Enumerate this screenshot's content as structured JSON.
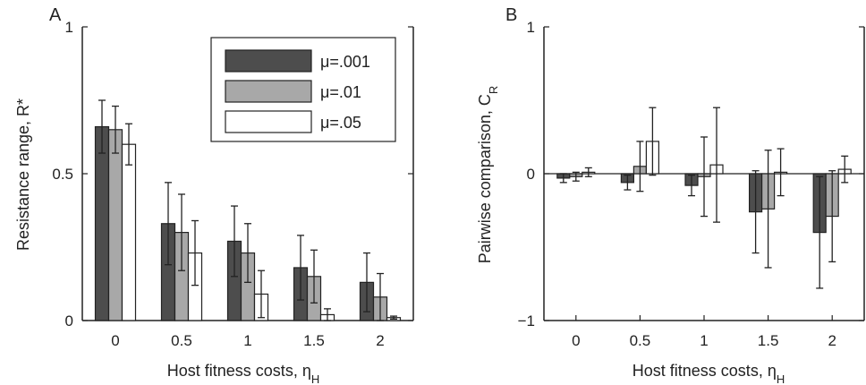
{
  "colors": {
    "series": [
      "#4d4d4d",
      "#a8a8a8",
      "#ffffff"
    ],
    "axis": "#222222",
    "errorbar": "#222222"
  },
  "chart_data": [
    {
      "type": "bar",
      "panel_label": "A",
      "xlabel_main": "Host fitness costs, η",
      "xlabel_sub": "H",
      "ylabel_main": "Resistance range, R*",
      "ylabel_sub": "",
      "categories": [
        "0",
        "0.5",
        "1",
        "1.5",
        "2"
      ],
      "ylim": [
        0,
        1
      ],
      "yticks": [
        0,
        0.5,
        1
      ],
      "ytick_labels": [
        "0",
        "0.5",
        "1"
      ],
      "grid": false,
      "legend_position": "top-right",
      "zero_line": false,
      "series": [
        {
          "name": "μ=.001",
          "values": [
            0.66,
            0.33,
            0.27,
            0.18,
            0.13
          ],
          "errors": [
            0.09,
            0.14,
            0.12,
            0.11,
            0.1
          ]
        },
        {
          "name": "μ=.01",
          "values": [
            0.65,
            0.3,
            0.23,
            0.15,
            0.08
          ],
          "errors": [
            0.08,
            0.13,
            0.1,
            0.09,
            0.08
          ]
        },
        {
          "name": "μ=.05",
          "values": [
            0.6,
            0.23,
            0.09,
            0.02,
            0.01
          ],
          "errors": [
            0.07,
            0.11,
            0.08,
            0.02,
            0.005
          ]
        }
      ]
    },
    {
      "type": "bar",
      "panel_label": "B",
      "xlabel_main": "Host fitness costs, η",
      "xlabel_sub": "H",
      "ylabel_main": "Pairwise comparison, C",
      "ylabel_sub": "R",
      "categories": [
        "0",
        "0.5",
        "1",
        "1.5",
        "2"
      ],
      "ylim": [
        -1,
        1
      ],
      "yticks": [
        -1,
        0,
        1
      ],
      "ytick_labels": [
        "−1",
        "0",
        "1"
      ],
      "grid": false,
      "zero_line": true,
      "series": [
        {
          "values": [
            -0.03,
            -0.06,
            -0.08,
            -0.26,
            -0.4
          ],
          "errors": [
            0.03,
            0.05,
            0.07,
            0.28,
            0.38
          ]
        },
        {
          "values": [
            -0.02,
            0.05,
            -0.02,
            -0.24,
            -0.29
          ],
          "errors": [
            0.03,
            0.17,
            0.27,
            0.4,
            0.31
          ]
        },
        {
          "values": [
            0.01,
            0.22,
            0.06,
            0.01,
            0.03
          ],
          "errors": [
            0.03,
            0.23,
            0.39,
            0.16,
            0.09
          ]
        }
      ]
    }
  ]
}
